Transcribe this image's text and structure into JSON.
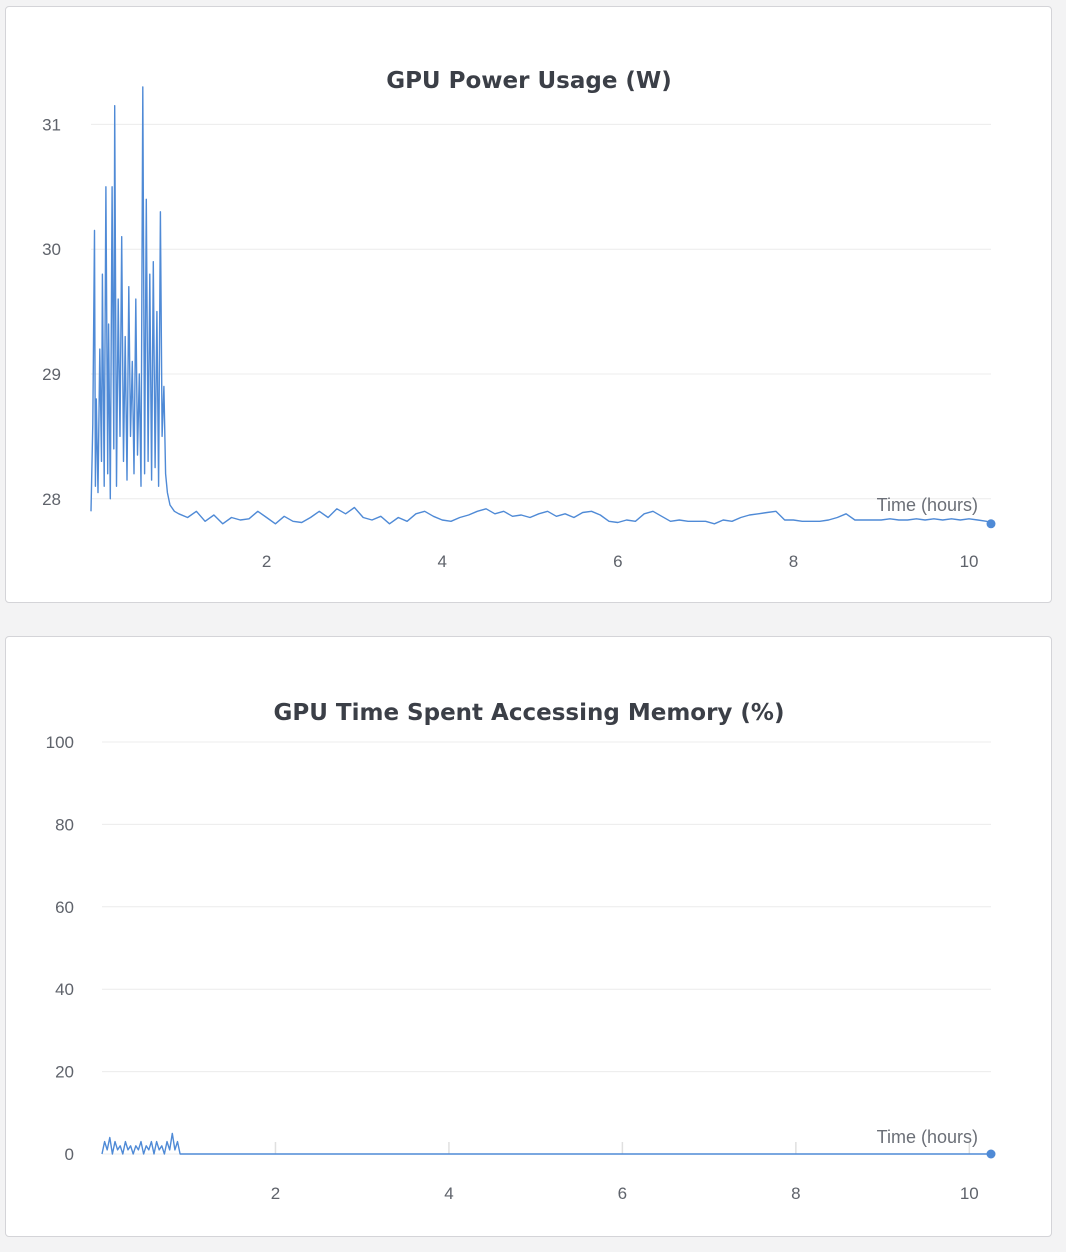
{
  "colors": {
    "series": "#4f8ad6",
    "grid": "#ececec",
    "panel_background": "#ffffff",
    "page_background": "#f3f3f4"
  },
  "chart_data": [
    {
      "type": "line",
      "title": "GPU Power Usage (W)",
      "xlabel": "Time (hours)",
      "ylabel": "",
      "xlim": [
        0,
        10.25
      ],
      "ylim": [
        27.75,
        31.3
      ],
      "x_ticks": [
        2,
        4,
        6,
        8,
        10
      ],
      "y_ticks": [
        28,
        29,
        30,
        31
      ],
      "grid": true,
      "legend": "none",
      "series": [
        {
          "x": [
            0.0,
            0.02,
            0.04,
            0.05,
            0.06,
            0.08,
            0.1,
            0.12,
            0.13,
            0.15,
            0.17,
            0.19,
            0.2,
            0.22,
            0.24,
            0.26,
            0.27,
            0.29,
            0.31,
            0.33,
            0.35,
            0.37,
            0.39,
            0.41,
            0.43,
            0.45,
            0.47,
            0.49,
            0.51,
            0.53,
            0.55,
            0.57,
            0.59,
            0.61,
            0.63,
            0.65,
            0.67,
            0.69,
            0.71,
            0.73,
            0.75,
            0.77,
            0.79,
            0.81,
            0.83,
            0.85,
            0.87,
            0.9,
            0.95,
            1.0,
            1.1,
            1.2,
            1.3,
            1.4,
            1.5,
            1.6,
            1.7,
            1.8,
            1.9,
            2.0,
            2.1,
            2.2,
            2.3,
            2.4,
            2.5,
            2.6,
            2.7,
            2.8,
            2.9,
            3.0,
            3.1,
            3.2,
            3.3,
            3.4,
            3.5,
            3.6,
            3.7,
            3.8,
            3.9,
            4.0,
            4.1,
            4.2,
            4.3,
            4.4,
            4.5,
            4.6,
            4.7,
            4.8,
            4.9,
            5.0,
            5.1,
            5.2,
            5.3,
            5.4,
            5.5,
            5.6,
            5.7,
            5.8,
            5.9,
            6.0,
            6.1,
            6.2,
            6.3,
            6.4,
            6.5,
            6.6,
            6.7,
            6.8,
            6.9,
            7.0,
            7.1,
            7.2,
            7.3,
            7.4,
            7.5,
            7.6,
            7.7,
            7.8,
            7.9,
            8.0,
            8.1,
            8.2,
            8.3,
            8.4,
            8.5,
            8.6,
            8.7,
            8.8,
            8.9,
            9.0,
            9.1,
            9.2,
            9.3,
            9.4,
            9.5,
            9.6,
            9.7,
            9.8,
            9.9,
            10.0,
            10.1,
            10.2,
            10.25
          ],
          "values": [
            27.9,
            28.6,
            30.15,
            28.1,
            28.8,
            28.05,
            29.2,
            28.3,
            29.8,
            28.1,
            30.5,
            28.2,
            29.4,
            28.0,
            30.5,
            28.4,
            31.15,
            28.1,
            29.6,
            28.5,
            30.1,
            28.3,
            29.3,
            28.15,
            29.7,
            28.5,
            29.1,
            28.2,
            29.6,
            28.35,
            29.0,
            28.1,
            31.3,
            28.2,
            30.4,
            28.3,
            29.8,
            28.15,
            29.9,
            28.25,
            29.5,
            28.1,
            30.3,
            28.5,
            28.9,
            28.2,
            28.05,
            27.95,
            27.9,
            27.88,
            27.85,
            27.9,
            27.82,
            27.87,
            27.8,
            27.85,
            27.83,
            27.84,
            27.9,
            27.85,
            27.8,
            27.86,
            27.82,
            27.81,
            27.85,
            27.9,
            27.85,
            27.92,
            27.88,
            27.93,
            27.85,
            27.83,
            27.86,
            27.8,
            27.85,
            27.82,
            27.88,
            27.9,
            27.86,
            27.83,
            27.82,
            27.85,
            27.87,
            27.9,
            27.92,
            27.88,
            27.9,
            27.86,
            27.87,
            27.85,
            27.88,
            27.9,
            27.86,
            27.88,
            27.85,
            27.89,
            27.9,
            27.87,
            27.82,
            27.81,
            27.83,
            27.82,
            27.88,
            27.9,
            27.86,
            27.82,
            27.83,
            27.82,
            27.82,
            27.82,
            27.8,
            27.83,
            27.82,
            27.85,
            27.87,
            27.88,
            27.89,
            27.9,
            27.83,
            27.83,
            27.82,
            27.82,
            27.82,
            27.83,
            27.85,
            27.88,
            27.83,
            27.83,
            27.83,
            27.83,
            27.84,
            27.83,
            27.83,
            27.84,
            27.83,
            27.84,
            27.83,
            27.84,
            27.83,
            27.84,
            27.83,
            27.82,
            27.8
          ]
        }
      ]
    },
    {
      "type": "line",
      "title": "GPU Time Spent Accessing Memory (%)",
      "xlabel": "Time (hours)",
      "ylabel": "",
      "xlim": [
        0,
        10.25
      ],
      "ylim": [
        0,
        100
      ],
      "x_ticks": [
        2,
        4,
        6,
        8,
        10
      ],
      "y_ticks": [
        0,
        20,
        40,
        60,
        80,
        100
      ],
      "grid": true,
      "legend": "none",
      "series": [
        {
          "x": [
            0.0,
            0.03,
            0.06,
            0.09,
            0.12,
            0.15,
            0.18,
            0.21,
            0.24,
            0.27,
            0.3,
            0.33,
            0.36,
            0.39,
            0.42,
            0.45,
            0.48,
            0.51,
            0.54,
            0.57,
            0.6,
            0.63,
            0.66,
            0.69,
            0.72,
            0.75,
            0.78,
            0.81,
            0.84,
            0.87,
            0.9,
            1.0,
            2.0,
            3.0,
            4.0,
            5.0,
            6.0,
            7.0,
            8.0,
            9.0,
            10.0,
            10.25
          ],
          "values": [
            0,
            3,
            1,
            4,
            0,
            3,
            1,
            2,
            0,
            3,
            1,
            2,
            0,
            2,
            1,
            3,
            0,
            2,
            1,
            3,
            0,
            3,
            1,
            2,
            0,
            3,
            1,
            5,
            1,
            3,
            0,
            0,
            0,
            0,
            0,
            0,
            0,
            0,
            0,
            0,
            0,
            0
          ]
        }
      ]
    }
  ]
}
